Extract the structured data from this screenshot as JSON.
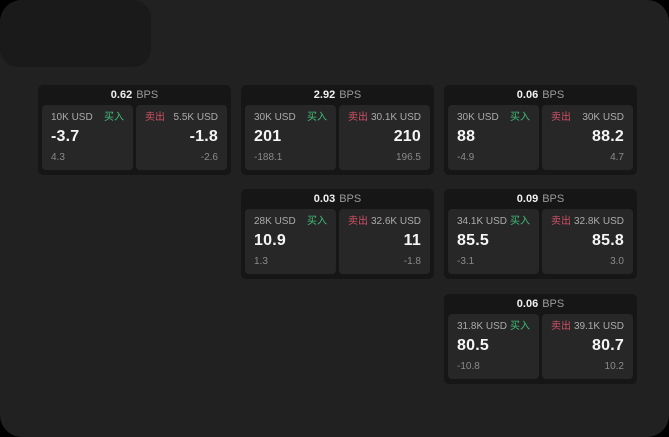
{
  "labels": {
    "bps": "BPS",
    "buy": "买入",
    "sell": "卖出"
  },
  "colors": {
    "background": "#000000",
    "panel": "#212121",
    "card": "#161616",
    "tile": "#272727",
    "buy_accent": "#42bd78",
    "sell_accent": "#cf5064",
    "text_primary": "#f5f5f5",
    "text_secondary": "#9a9a9a"
  },
  "cards": [
    {
      "bps": "0.62",
      "buy": {
        "size": "10K USD",
        "value": "-3.7",
        "delta": "4.3"
      },
      "sell": {
        "size": "5.5K USD",
        "value": "-1.8",
        "delta": "-2.6"
      }
    },
    {
      "bps": "2.92",
      "buy": {
        "size": "30K USD",
        "value": "201",
        "delta": "-188.1"
      },
      "sell": {
        "size": "30.1K USD",
        "value": "210",
        "delta": "196.5"
      }
    },
    {
      "bps": "0.06",
      "buy": {
        "size": "30K USD",
        "value": "88",
        "delta": "-4.9"
      },
      "sell": {
        "size": "30K USD",
        "value": "88.2",
        "delta": "4.7"
      }
    },
    {
      "bps": "0.03",
      "buy": {
        "size": "28K USD",
        "value": "10.9",
        "delta": "1.3"
      },
      "sell": {
        "size": "32.6K USD",
        "value": "11",
        "delta": "-1.8"
      }
    },
    {
      "bps": "0.09",
      "buy": {
        "size": "34.1K USD",
        "value": "85.5",
        "delta": "-3.1"
      },
      "sell": {
        "size": "32.8K USD",
        "value": "85.8",
        "delta": "3.0"
      }
    },
    {
      "bps": "0.06",
      "buy": {
        "size": "31.8K USD",
        "value": "80.5",
        "delta": "-10.8"
      },
      "sell": {
        "size": "39.1K USD",
        "value": "80.7",
        "delta": "10.2"
      }
    }
  ]
}
